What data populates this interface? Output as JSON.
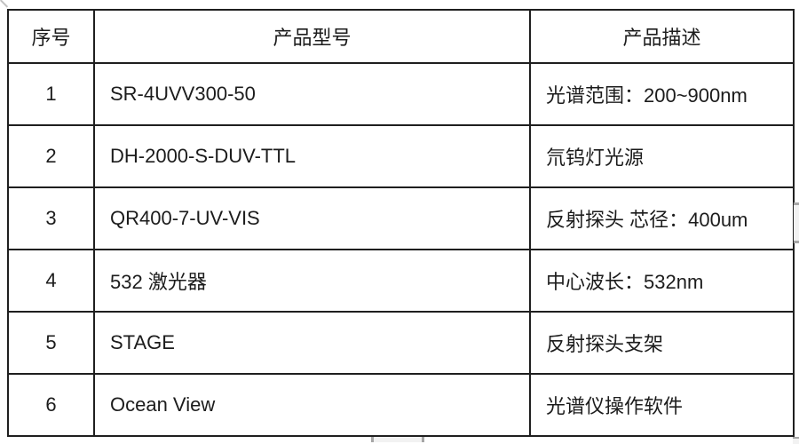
{
  "table": {
    "columns": [
      {
        "key": "index",
        "label": "序号"
      },
      {
        "key": "model",
        "label": "产品型号"
      },
      {
        "key": "description",
        "label": "产品描述"
      }
    ],
    "rows": [
      {
        "index": "1",
        "model": "SR-4UVV300-50",
        "description": "光谱范围：200~900nm"
      },
      {
        "index": "2",
        "model": "DH-2000-S-DUV-TTL",
        "description": "氘钨灯光源"
      },
      {
        "index": "3",
        "model": "QR400-7-UV-VIS",
        "description": "反射探头 芯径：400um"
      },
      {
        "index": "4",
        "model": "532 激光器",
        "description": "中心波长：532nm"
      },
      {
        "index": "5",
        "model": "STAGE",
        "description": "反射探头支架"
      },
      {
        "index": "6",
        "model": "Ocean View",
        "description": "光谱仪操作软件"
      }
    ]
  },
  "colors": {
    "border": "#1f1f1f",
    "text": "#1c1c1c",
    "background": "#ffffff",
    "scrollbar_track": "#f2f2f2",
    "scrollbar_cap": "#a6a6a6"
  }
}
